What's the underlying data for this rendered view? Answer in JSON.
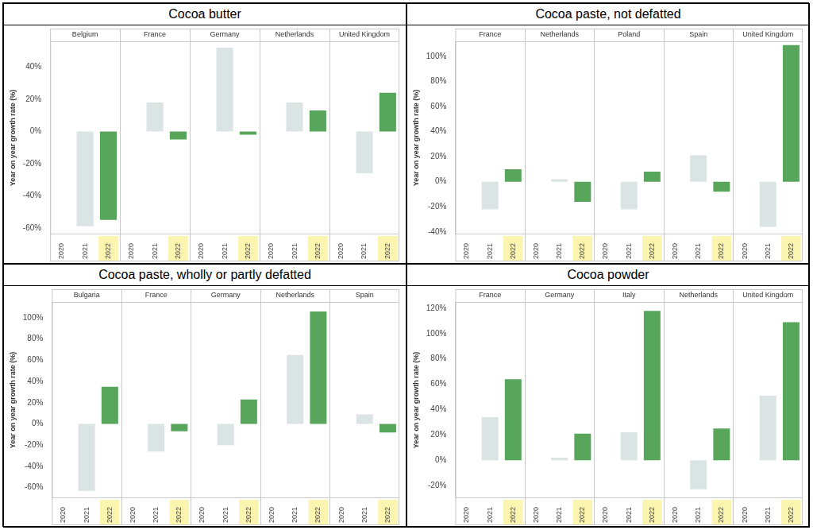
{
  "chart_data": [
    {
      "type": "bar",
      "title": "Cocoa butter",
      "y_label": "Year on year growth rate (%)",
      "categories": [
        "2020",
        "2021",
        "2022"
      ],
      "colors": [
        "#dbe4e4",
        "#dbe4e4",
        "#58a55c"
      ],
      "facets": [
        {
          "name": "Belgium",
          "values": [
            null,
            -59,
            -55
          ]
        },
        {
          "name": "France",
          "values": [
            null,
            18,
            -5
          ]
        },
        {
          "name": "Germany",
          "values": [
            null,
            52,
            -2
          ]
        },
        {
          "name": "Netherlands",
          "values": [
            null,
            18,
            13
          ]
        },
        {
          "name": "United Kingdom",
          "values": [
            null,
            -26,
            24
          ]
        }
      ],
      "ylim": [
        -64,
        56
      ],
      "yticks": [
        {
          "value": -60,
          "label": "-60%"
        },
        {
          "value": -40,
          "label": "-40%"
        },
        {
          "value": -20,
          "label": "-20%"
        },
        {
          "value": 0,
          "label": "0%"
        },
        {
          "value": 20,
          "label": "20%"
        },
        {
          "value": 40,
          "label": "40%"
        }
      ],
      "grid": false
    },
    {
      "type": "bar",
      "title": "Cocoa paste, not defatted",
      "y_label": "Year on year growth rate (%)",
      "categories": [
        "2020",
        "2021",
        "2022"
      ],
      "colors": [
        "#dbe4e4",
        "#dbe4e4",
        "#58a55c"
      ],
      "facets": [
        {
          "name": "France",
          "values": [
            null,
            -22,
            10
          ]
        },
        {
          "name": "Netherlands",
          "values": [
            null,
            2,
            -16
          ]
        },
        {
          "name": "Poland",
          "values": [
            null,
            -22,
            8
          ]
        },
        {
          "name": "Spain",
          "values": [
            null,
            21,
            -8
          ]
        },
        {
          "name": "United Kingdom",
          "values": [
            null,
            -36,
            109
          ]
        }
      ],
      "ylim": [
        -42,
        112
      ],
      "yticks": [
        {
          "value": -40,
          "label": "-40%"
        },
        {
          "value": -20,
          "label": "-20%"
        },
        {
          "value": 0,
          "label": "0%"
        },
        {
          "value": 20,
          "label": "20%"
        },
        {
          "value": 40,
          "label": "40%"
        },
        {
          "value": 60,
          "label": "60%"
        },
        {
          "value": 80,
          "label": "80%"
        },
        {
          "value": 100,
          "label": "100%"
        }
      ],
      "grid": false
    },
    {
      "type": "bar",
      "title": "Cocoa paste, wholly or partly defatted",
      "y_label": "Year on year growth rate (%)",
      "categories": [
        "2020",
        "2021",
        "2022"
      ],
      "colors": [
        "#dbe4e4",
        "#dbe4e4",
        "#58a55c"
      ],
      "facets": [
        {
          "name": "Bulgaria",
          "values": [
            null,
            -63,
            35
          ]
        },
        {
          "name": "France",
          "values": [
            null,
            -26,
            -7
          ]
        },
        {
          "name": "Germany",
          "values": [
            null,
            -20,
            23
          ]
        },
        {
          "name": "Netherlands",
          "values": [
            null,
            65,
            106
          ]
        },
        {
          "name": "Spain",
          "values": [
            null,
            9,
            -8
          ]
        }
      ],
      "ylim": [
        -70,
        115
      ],
      "yticks": [
        {
          "value": -60,
          "label": "-60%"
        },
        {
          "value": -40,
          "label": "-40%"
        },
        {
          "value": -20,
          "label": "-20%"
        },
        {
          "value": 0,
          "label": "0%"
        },
        {
          "value": 20,
          "label": "20%"
        },
        {
          "value": 40,
          "label": "40%"
        },
        {
          "value": 60,
          "label": "60%"
        },
        {
          "value": 80,
          "label": "80%"
        },
        {
          "value": 100,
          "label": "100%"
        }
      ],
      "grid": false
    },
    {
      "type": "bar",
      "title": "Cocoa powder",
      "y_label": "Year on year growth rate (%)",
      "categories": [
        "2020",
        "2021",
        "2022"
      ],
      "colors": [
        "#dbe4e4",
        "#dbe4e4",
        "#58a55c"
      ],
      "facets": [
        {
          "name": "France",
          "values": [
            null,
            34,
            64
          ]
        },
        {
          "name": "Germany",
          "values": [
            null,
            2,
            21
          ]
        },
        {
          "name": "Italy",
          "values": [
            null,
            22,
            118
          ]
        },
        {
          "name": "Netherlands",
          "values": [
            null,
            -23,
            25
          ]
        },
        {
          "name": "United Kingdom",
          "values": [
            null,
            51,
            109
          ]
        }
      ],
      "ylim": [
        -30,
        125
      ],
      "yticks": [
        {
          "value": -20,
          "label": "-20%"
        },
        {
          "value": 0,
          "label": "0%"
        },
        {
          "value": 20,
          "label": "20%"
        },
        {
          "value": 40,
          "label": "40%"
        },
        {
          "value": 60,
          "label": "60%"
        },
        {
          "value": 80,
          "label": "80%"
        },
        {
          "value": 100,
          "label": "100%"
        },
        {
          "value": 120,
          "label": "120%"
        }
      ],
      "grid": false
    }
  ]
}
